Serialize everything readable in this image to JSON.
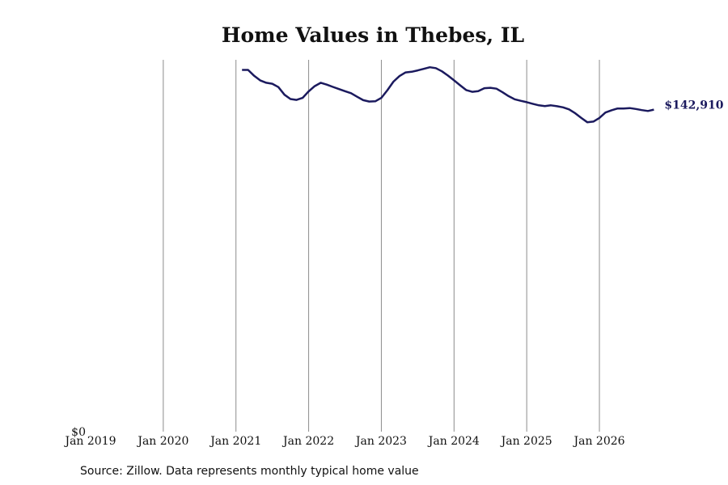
{
  "chart_data": {
    "type": "line",
    "title": "Home Values in Thebes, IL",
    "xlabel": "",
    "ylabel": "",
    "x_ticks": [
      "Jan 2019",
      "Jan 2020",
      "Jan 2021",
      "Jan 2022",
      "Jan 2023",
      "Jan 2024",
      "Jan 2025",
      "Jan 2026"
    ],
    "x_range": [
      2019.0,
      2026.5
    ],
    "y_tick_label": "$0",
    "ylim": [
      0,
      165000
    ],
    "grid": "vertical",
    "series": [
      {
        "color": "#1b1a5e",
        "end_label": "$142,910",
        "points": [
          [
            2021.083,
            160500
          ],
          [
            2021.167,
            160500
          ],
          [
            2021.25,
            157900
          ],
          [
            2021.333,
            155900
          ],
          [
            2021.417,
            154800
          ],
          [
            2021.5,
            154400
          ],
          [
            2021.583,
            152900
          ],
          [
            2021.667,
            149500
          ],
          [
            2021.75,
            147600
          ],
          [
            2021.833,
            147200
          ],
          [
            2021.917,
            148100
          ],
          [
            2022.0,
            151000
          ],
          [
            2022.083,
            153300
          ],
          [
            2022.167,
            154800
          ],
          [
            2022.25,
            154000
          ],
          [
            2022.333,
            153000
          ],
          [
            2022.417,
            152000
          ],
          [
            2022.5,
            151100
          ],
          [
            2022.583,
            150200
          ],
          [
            2022.667,
            148600
          ],
          [
            2022.75,
            147100
          ],
          [
            2022.833,
            146500
          ],
          [
            2022.917,
            146600
          ],
          [
            2023.0,
            148100
          ],
          [
            2023.083,
            151500
          ],
          [
            2023.167,
            155300
          ],
          [
            2023.25,
            157800
          ],
          [
            2023.333,
            159400
          ],
          [
            2023.417,
            159700
          ],
          [
            2023.5,
            160300
          ],
          [
            2023.583,
            161000
          ],
          [
            2023.667,
            161700
          ],
          [
            2023.75,
            161300
          ],
          [
            2023.833,
            159900
          ],
          [
            2023.917,
            158000
          ],
          [
            2024.0,
            155900
          ],
          [
            2024.083,
            153700
          ],
          [
            2024.167,
            151600
          ],
          [
            2024.25,
            150800
          ],
          [
            2024.333,
            151100
          ],
          [
            2024.417,
            152400
          ],
          [
            2024.5,
            152600
          ],
          [
            2024.583,
            152200
          ],
          [
            2024.667,
            150600
          ],
          [
            2024.75,
            148900
          ],
          [
            2024.833,
            147500
          ],
          [
            2024.917,
            146800
          ],
          [
            2025.0,
            146200
          ],
          [
            2025.083,
            145500
          ],
          [
            2025.167,
            144800
          ],
          [
            2025.25,
            144500
          ],
          [
            2025.333,
            144800
          ],
          [
            2025.417,
            144400
          ],
          [
            2025.5,
            143900
          ],
          [
            2025.583,
            143000
          ],
          [
            2025.667,
            141300
          ],
          [
            2025.75,
            139200
          ],
          [
            2025.833,
            137300
          ],
          [
            2025.917,
            137600
          ],
          [
            2026.0,
            139200
          ],
          [
            2026.083,
            141600
          ],
          [
            2026.167,
            142600
          ],
          [
            2026.25,
            143400
          ],
          [
            2026.333,
            143400
          ],
          [
            2026.417,
            143600
          ],
          [
            2026.5,
            143200
          ],
          [
            2026.583,
            142700
          ],
          [
            2026.667,
            142300
          ],
          [
            2026.75,
            142900
          ]
        ]
      }
    ],
    "source_note": "Source: Zillow. Data represents monthly typical home value"
  }
}
